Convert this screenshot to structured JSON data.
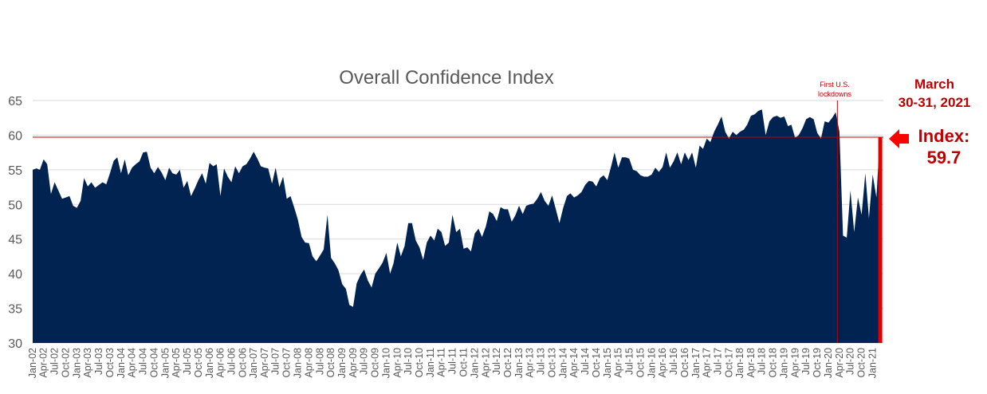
{
  "chart_data": {
    "type": "area",
    "title": "Overall Confidence Index",
    "xlabel": "",
    "ylabel": "",
    "ylim": [
      30,
      65
    ],
    "yticks": [
      30,
      35,
      40,
      45,
      50,
      55,
      60,
      65
    ],
    "grid": true,
    "colors": {
      "area": "#002352",
      "reference": "#c00000",
      "grid": "#d9d9d9",
      "text": "#595959"
    },
    "x_tick_labels": [
      "Jan-02",
      "Apr-02",
      "Jul-02",
      "Oct-02",
      "Jan-03",
      "Apr-03",
      "Jul-03",
      "Oct-03",
      "Jan-04",
      "Apr-04",
      "Jul-04",
      "Oct-04",
      "Jan-05",
      "Apr-05",
      "Jul-05",
      "Oct-05",
      "Jan-06",
      "Apr-06",
      "Jul-06",
      "Oct-06",
      "Jan-07",
      "Apr-07",
      "Jul-07",
      "Oct-07",
      "Jan-08",
      "Apr-08",
      "Jul-08",
      "Oct-08",
      "Jan-09",
      "Apr-09",
      "Jul-09",
      "Oct-09",
      "Jan-10",
      "Apr-10",
      "Jul-10",
      "Oct-10",
      "Jan-11",
      "Apr-11",
      "Jul-11",
      "Oct-11",
      "Jan-12",
      "Apr-12",
      "Jul-12",
      "Oct-12",
      "Jan-13",
      "Apr-13",
      "Jul-13",
      "Oct-13",
      "Jan-14",
      "Apr-14",
      "Jul-14",
      "Oct-14",
      "Jan-15",
      "Apr-15",
      "Jul-15",
      "Oct-15",
      "Jan-16",
      "Apr-16",
      "Jul-16",
      "Oct-16",
      "Jan-17",
      "Apr-17",
      "Jul-17",
      "Oct-17",
      "Jan-18",
      "Apr-18",
      "Jul-18",
      "Oct-18",
      "Jan-19",
      "Apr-19",
      "Jul-19",
      "Oct-19",
      "Jan-20",
      "Apr-20",
      "Jul-20",
      "Oct-20",
      "Jan-21"
    ],
    "series": [
      {
        "values": [
          [
            "2002-01-01",
            55.0
          ],
          [
            "2002-02-01",
            55.2
          ],
          [
            "2002-03-01",
            55.0
          ],
          [
            "2002-04-01",
            56.5
          ],
          [
            "2002-05-01",
            55.8
          ],
          [
            "2002-06-01",
            51.5
          ],
          [
            "2002-07-01",
            53.2
          ],
          [
            "2002-08-01",
            52.0
          ],
          [
            "2002-09-01",
            50.8
          ],
          [
            "2002-10-01",
            51.0
          ],
          [
            "2002-11-01",
            51.2
          ],
          [
            "2002-12-01",
            49.8
          ],
          [
            "2003-01-01",
            49.5
          ],
          [
            "2003-02-01",
            50.5
          ],
          [
            "2003-03-01",
            53.8
          ],
          [
            "2003-04-01",
            52.6
          ],
          [
            "2003-05-01",
            53.2
          ],
          [
            "2003-06-01",
            52.4
          ],
          [
            "2003-07-01",
            52.8
          ],
          [
            "2003-08-01",
            53.2
          ],
          [
            "2003-09-01",
            52.9
          ],
          [
            "2003-10-01",
            54.5
          ],
          [
            "2003-11-01",
            56.3
          ],
          [
            "2003-12-01",
            56.8
          ],
          [
            "2004-01-01",
            54.5
          ],
          [
            "2004-02-01",
            56.5
          ],
          [
            "2004-03-01",
            54.2
          ],
          [
            "2004-04-01",
            55.3
          ],
          [
            "2004-05-01",
            55.8
          ],
          [
            "2004-06-01",
            56.2
          ],
          [
            "2004-07-01",
            57.5
          ],
          [
            "2004-08-01",
            57.6
          ],
          [
            "2004-09-01",
            55.3
          ],
          [
            "2004-10-01",
            54.5
          ],
          [
            "2004-11-01",
            55.4
          ],
          [
            "2004-12-01",
            54.6
          ],
          [
            "2005-01-01",
            53.5
          ],
          [
            "2005-02-01",
            55.3
          ],
          [
            "2005-03-01",
            54.5
          ],
          [
            "2005-04-01",
            54.3
          ],
          [
            "2005-05-01",
            55.0
          ],
          [
            "2005-06-01",
            52.4
          ],
          [
            "2005-07-01",
            53.4
          ],
          [
            "2005-08-01",
            51.2
          ],
          [
            "2005-09-01",
            52.3
          ],
          [
            "2005-10-01",
            53.5
          ],
          [
            "2005-11-01",
            54.5
          ],
          [
            "2005-12-01",
            53.0
          ],
          [
            "2006-01-01",
            56.0
          ],
          [
            "2006-02-01",
            55.5
          ],
          [
            "2006-03-01",
            55.8
          ],
          [
            "2006-04-01",
            51.2
          ],
          [
            "2006-05-01",
            55.2
          ],
          [
            "2006-06-01",
            54.0
          ],
          [
            "2006-07-01",
            53.2
          ],
          [
            "2006-08-01",
            55.5
          ],
          [
            "2006-09-01",
            54.5
          ],
          [
            "2006-10-01",
            55.5
          ],
          [
            "2006-11-01",
            55.8
          ],
          [
            "2006-12-01",
            56.6
          ],
          [
            "2007-01-01",
            57.6
          ],
          [
            "2007-02-01",
            56.6
          ],
          [
            "2007-03-01",
            55.5
          ],
          [
            "2007-04-01",
            55.3
          ],
          [
            "2007-05-01",
            55.2
          ],
          [
            "2007-06-01",
            53.0
          ],
          [
            "2007-07-01",
            55.3
          ],
          [
            "2007-08-01",
            52.5
          ],
          [
            "2007-09-01",
            54.0
          ],
          [
            "2007-10-01",
            50.8
          ],
          [
            "2007-11-01",
            51.2
          ],
          [
            "2007-12-01",
            49.6
          ],
          [
            "2008-01-01",
            47.8
          ],
          [
            "2008-02-01",
            45.3
          ],
          [
            "2008-03-01",
            44.5
          ],
          [
            "2008-04-01",
            44.4
          ],
          [
            "2008-05-01",
            42.5
          ],
          [
            "2008-06-01",
            41.8
          ],
          [
            "2008-07-01",
            42.6
          ],
          [
            "2008-08-01",
            43.5
          ],
          [
            "2008-09-01",
            48.5
          ],
          [
            "2008-10-01",
            42.3
          ],
          [
            "2008-11-01",
            41.5
          ],
          [
            "2008-12-01",
            40.5
          ],
          [
            "2009-01-01",
            38.5
          ],
          [
            "2009-02-01",
            37.8
          ],
          [
            "2009-03-01",
            35.5
          ],
          [
            "2009-04-01",
            35.2
          ],
          [
            "2009-05-01",
            38.6
          ],
          [
            "2009-06-01",
            39.8
          ],
          [
            "2009-07-01",
            40.6
          ],
          [
            "2009-08-01",
            39.0
          ],
          [
            "2009-09-01",
            38.0
          ],
          [
            "2009-10-01",
            40.0
          ],
          [
            "2009-11-01",
            40.8
          ],
          [
            "2009-12-01",
            41.6
          ],
          [
            "2010-01-01",
            43.0
          ],
          [
            "2010-02-01",
            40.0
          ],
          [
            "2010-03-01",
            41.5
          ],
          [
            "2010-04-01",
            44.5
          ],
          [
            "2010-05-01",
            42.5
          ],
          [
            "2010-06-01",
            44.0
          ],
          [
            "2010-07-01",
            47.3
          ],
          [
            "2010-08-01",
            47.3
          ],
          [
            "2010-09-01",
            44.8
          ],
          [
            "2010-10-01",
            43.8
          ],
          [
            "2010-11-01",
            42.0
          ],
          [
            "2010-12-01",
            44.5
          ],
          [
            "2011-01-01",
            45.5
          ],
          [
            "2011-02-01",
            44.8
          ],
          [
            "2011-03-01",
            46.5
          ],
          [
            "2011-04-01",
            46.0
          ],
          [
            "2011-05-01",
            44.0
          ],
          [
            "2011-06-01",
            44.5
          ],
          [
            "2011-07-01",
            48.5
          ],
          [
            "2011-08-01",
            46.0
          ],
          [
            "2011-09-01",
            46.5
          ],
          [
            "2011-10-01",
            43.6
          ],
          [
            "2011-11-01",
            43.8
          ],
          [
            "2011-12-01",
            43.2
          ],
          [
            "2012-01-01",
            45.8
          ],
          [
            "2012-02-01",
            46.5
          ],
          [
            "2012-03-01",
            45.3
          ],
          [
            "2012-04-01",
            46.8
          ],
          [
            "2012-05-01",
            49.0
          ],
          [
            "2012-06-01",
            48.6
          ],
          [
            "2012-07-01",
            47.6
          ],
          [
            "2012-08-01",
            49.6
          ],
          [
            "2012-09-01",
            49.3
          ],
          [
            "2012-10-01",
            49.3
          ],
          [
            "2012-11-01",
            47.5
          ],
          [
            "2012-12-01",
            48.4
          ],
          [
            "2013-01-01",
            49.8
          ],
          [
            "2013-02-01",
            48.6
          ],
          [
            "2013-03-01",
            49.8
          ],
          [
            "2013-04-01",
            50.0
          ],
          [
            "2013-05-01",
            50.1
          ],
          [
            "2013-06-01",
            50.8
          ],
          [
            "2013-07-01",
            51.8
          ],
          [
            "2013-08-01",
            50.5
          ],
          [
            "2013-09-01",
            49.8
          ],
          [
            "2013-10-01",
            51.3
          ],
          [
            "2013-11-01",
            49.3
          ],
          [
            "2013-12-01",
            47.3
          ],
          [
            "2014-01-01",
            49.5
          ],
          [
            "2014-02-01",
            51.2
          ],
          [
            "2014-03-01",
            51.6
          ],
          [
            "2014-04-01",
            51.0
          ],
          [
            "2014-05-01",
            51.3
          ],
          [
            "2014-06-01",
            51.8
          ],
          [
            "2014-07-01",
            52.8
          ],
          [
            "2014-08-01",
            53.4
          ],
          [
            "2014-09-01",
            53.3
          ],
          [
            "2014-10-01",
            52.6
          ],
          [
            "2014-11-01",
            53.8
          ],
          [
            "2014-12-01",
            54.2
          ],
          [
            "2015-01-01",
            53.5
          ],
          [
            "2015-02-01",
            55.5
          ],
          [
            "2015-03-01",
            57.5
          ],
          [
            "2015-04-01",
            55.3
          ],
          [
            "2015-05-01",
            56.8
          ],
          [
            "2015-06-01",
            56.8
          ],
          [
            "2015-07-01",
            56.6
          ],
          [
            "2015-08-01",
            55.0
          ],
          [
            "2015-09-01",
            54.8
          ],
          [
            "2015-10-01",
            54.2
          ],
          [
            "2015-11-01",
            54.0
          ],
          [
            "2015-12-01",
            54.0
          ],
          [
            "2016-01-01",
            54.3
          ],
          [
            "2016-02-01",
            55.3
          ],
          [
            "2016-03-01",
            54.7
          ],
          [
            "2016-04-01",
            55.4
          ],
          [
            "2016-05-01",
            57.5
          ],
          [
            "2016-06-01",
            55.3
          ],
          [
            "2016-07-01",
            56.2
          ],
          [
            "2016-08-01",
            57.5
          ],
          [
            "2016-09-01",
            55.8
          ],
          [
            "2016-10-01",
            57.5
          ],
          [
            "2016-11-01",
            56.4
          ],
          [
            "2016-12-01",
            57.5
          ],
          [
            "2017-01-01",
            55.3
          ],
          [
            "2017-02-01",
            58.5
          ],
          [
            "2017-03-01",
            58.0
          ],
          [
            "2017-04-01",
            59.5
          ],
          [
            "2017-05-01",
            59.0
          ],
          [
            "2017-06-01",
            60.5
          ],
          [
            "2017-07-01",
            61.5
          ],
          [
            "2017-08-01",
            62.7
          ],
          [
            "2017-09-01",
            60.5
          ],
          [
            "2017-10-01",
            59.5
          ],
          [
            "2017-11-01",
            60.5
          ],
          [
            "2017-12-01",
            60.0
          ],
          [
            "2018-01-01",
            60.5
          ],
          [
            "2018-02-01",
            60.8
          ],
          [
            "2018-03-01",
            61.5
          ],
          [
            "2018-04-01",
            62.8
          ],
          [
            "2018-05-01",
            63.0
          ],
          [
            "2018-06-01",
            63.5
          ],
          [
            "2018-07-01",
            63.7
          ],
          [
            "2018-08-01",
            60.0
          ],
          [
            "2018-09-01",
            62.0
          ],
          [
            "2018-10-01",
            62.6
          ],
          [
            "2018-11-01",
            62.8
          ],
          [
            "2018-12-01",
            62.5
          ],
          [
            "2019-01-01",
            62.7
          ],
          [
            "2019-02-01",
            61.3
          ],
          [
            "2019-03-01",
            61.5
          ],
          [
            "2019-04-01",
            59.6
          ],
          [
            "2019-05-01",
            60.0
          ],
          [
            "2019-06-01",
            61.0
          ],
          [
            "2019-07-01",
            62.3
          ],
          [
            "2019-08-01",
            62.6
          ],
          [
            "2019-09-01",
            62.3
          ],
          [
            "2019-10-01",
            60.3
          ],
          [
            "2019-11-01",
            59.5
          ],
          [
            "2019-12-01",
            62.0
          ],
          [
            "2020-01-01",
            61.8
          ],
          [
            "2020-02-01",
            62.5
          ],
          [
            "2020-03-01",
            63.3
          ],
          [
            "2020-04-01",
            60.5
          ],
          [
            "2020-05-01",
            45.5
          ],
          [
            "2020-06-01",
            45.2
          ],
          [
            "2020-07-01",
            52.0
          ],
          [
            "2020-08-01",
            46.0
          ],
          [
            "2020-09-01",
            51.0
          ],
          [
            "2020-10-01",
            48.5
          ],
          [
            "2020-11-01",
            54.5
          ],
          [
            "2020-12-01",
            48.0
          ],
          [
            "2021-01-01",
            54.3
          ],
          [
            "2021-02-01",
            51.0
          ],
          [
            "2021-03-01",
            59.7
          ]
        ]
      }
    ],
    "reference_line": {
      "y": 59.7
    },
    "event_marker": {
      "x": "2020-03-15",
      "label_lines": [
        "First U.S.",
        "lockdowns"
      ]
    },
    "callout": {
      "date_lines": [
        "March",
        "30-31, 2021"
      ],
      "index_label": "Index:",
      "index_value": "59.7",
      "arrow": "left-arrow-icon"
    }
  }
}
